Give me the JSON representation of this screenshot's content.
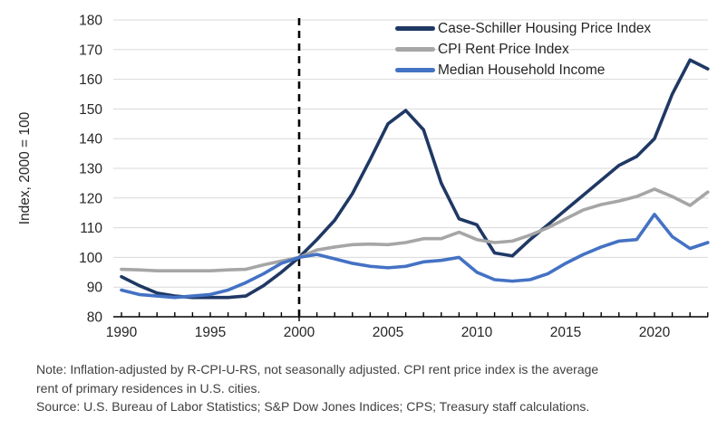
{
  "figure": {
    "y_axis_title": "Index, 2000 = 100",
    "note_line1": "Note: Inflation-adjusted by R-CPI-U-RS, not seasonally adjusted. CPI rent price index is the average",
    "note_line2": "rent of primary residences in U.S. cities.",
    "source": "Source: U.S. Bureau of Labor Statistics; S&P Dow Jones Indices; CPS; Treasury staff calculations."
  },
  "chart_data": {
    "type": "line",
    "title": "",
    "xlabel": "",
    "ylabel": "Index, 2000 = 100",
    "ylim": [
      80,
      180
    ],
    "ytick_step": 10,
    "xlim": [
      1990,
      2023
    ],
    "xticks_labeled": [
      1990,
      1995,
      2000,
      2005,
      2010,
      2015,
      2020
    ],
    "reference_line_x": 2000,
    "grid": true,
    "legend_position": "top-right-inside",
    "axis_color": "#000000",
    "grid_color": "#D9D9D9",
    "text_color": "#262626",
    "x": [
      1990,
      1991,
      1992,
      1993,
      1994,
      1995,
      1996,
      1997,
      1998,
      1999,
      2000,
      2001,
      2002,
      2003,
      2004,
      2005,
      2006,
      2007,
      2008,
      2009,
      2010,
      2011,
      2012,
      2013,
      2014,
      2015,
      2016,
      2017,
      2018,
      2019,
      2020,
      2021,
      2022,
      2023
    ],
    "series": [
      {
        "name": "Case-Schiller Housing Price Index",
        "color": "#1F3864",
        "values": [
          93.5,
          90.5,
          88,
          87,
          86.5,
          86.5,
          86.5,
          87,
          90.5,
          95,
          100,
          106,
          112.5,
          121.5,
          133,
          145,
          149.5,
          143,
          125,
          113,
          111,
          101.5,
          100.5,
          106,
          111,
          116,
          121,
          126,
          131,
          134,
          140,
          155,
          166.5,
          163.5
        ]
      },
      {
        "name": "CPI Rent Price Index",
        "color": "#A6A6A6",
        "values": [
          96,
          95.8,
          95.5,
          95.5,
          95.5,
          95.5,
          95.8,
          96,
          97.5,
          98.8,
          100,
          102.5,
          103.5,
          104.3,
          104.5,
          104.3,
          105,
          106.3,
          106.3,
          108.5,
          106,
          105,
          105.5,
          107.5,
          110,
          113,
          116,
          117.8,
          119,
          120.5,
          123,
          120.5,
          117.5,
          122
        ]
      },
      {
        "name": "Median Household Income",
        "color": "#4472C4",
        "values": [
          89,
          87.5,
          87,
          86.5,
          87,
          87.5,
          89,
          91.5,
          94.5,
          98,
          100,
          101,
          99.5,
          98,
          97,
          96.5,
          97,
          98.5,
          99,
          100,
          95,
          92.5,
          92,
          92.5,
          94.5,
          98,
          101,
          103.5,
          105.5,
          106,
          114.5,
          107,
          103,
          105
        ]
      }
    ]
  }
}
